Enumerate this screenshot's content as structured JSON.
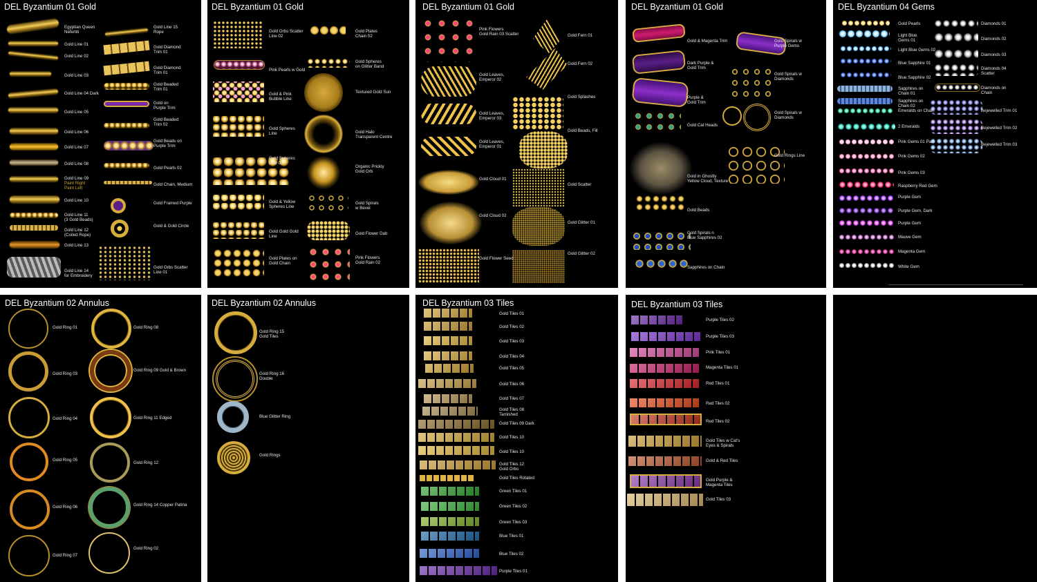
{
  "panels": {
    "p1": {
      "title": "DEL Byzantium 01 Gold",
      "labels": [
        "Egyptian Queen\nNefertiti",
        "Gold Line 15\nRope",
        "Gold Line 01",
        "Gold Diamond\nTrim 01",
        "Gold Line 02",
        "Gold Diamond\nTrim 01",
        "Gold Line 03",
        "Gold Beaded\nTrim 01",
        "Gold Line 04 Dark",
        "Gold on\nPurple Trim",
        "Gold Line 05",
        "Gold Beaded\nTrim 02",
        "Gold Line 06",
        "Gold Beads on\nPurple Trim",
        "Gold Line 07",
        "Gold Line 08",
        "Gold Pearls 02",
        "Gold Line 09",
        "Gold Chain, Medium",
        "Gold Line 10",
        "Gold Framed Purple",
        "Gold Line 11\n(3 Gold Beads)",
        "Gold Line 12\n(Coiled Rope)",
        "Gold & Gold Circle",
        "Gold Line 13",
        "Gold Line 14\nfor Embroidery",
        "Gold Orbs Scatter\nLine 01"
      ],
      "sub": "Paint Right\nPaint Left"
    },
    "p2": {
      "title": "DEL Byzantium 01 Gold",
      "labels": [
        "Gold Orbs Scatter\nLine 02",
        "Gold Plates\nChain 02",
        "Pink Pearls w Gold",
        "Gold Spheres\non Glitter Band",
        "Gold & Pink\nBubble Line",
        "Textured Gold Sun",
        "Gold Spheres\nLine",
        "Gold Halo\nTransparent Centre",
        "Gold Spheres\nLine 03",
        "Organic Prickly\nGold Orb",
        "Gold & Yellow\nSpheres Line",
        "Gold Spirals\nw Bevel",
        "Gold Gold Gold\nLine",
        "Gold Flower Dab",
        "Gold Plates on\nGold Chain",
        "Pink Flowers\nGold Rain 02"
      ]
    },
    "p3": {
      "title": "DEL Byzantium 01 Gold",
      "labels": [
        "Pink Flowers\nGold Rain 03 Scatter",
        "Gold Fern 01",
        "Gold Fern 02",
        "Gold Leaves,\nEmperor 02",
        "Gold Splashes",
        "Gold Leaves,\nEmperor 03",
        "Gold Beads, Fill",
        "Gold Leaves,\nEmperor 01",
        "Gold Cloud 01",
        "Gold Scatter",
        "Gold Cloud 02",
        "Gold Glitter 01",
        "Gold Flower Seed",
        "Gold Glitter 02"
      ]
    },
    "p4": {
      "title": "DEL Byzantium 01 Gold",
      "labels": [
        "Gold & Magenta Trim",
        "Gold Spirals w\nPurple Gems",
        "Dark Purple &\nGold Trim",
        "Gold Spirals w\nDiamonds",
        "Purple &\nGold Trim",
        "Gold Spirals w\nDiamonds",
        "Gold Cat Heads",
        "Gold Rings Line",
        "Gold in Ghostly\nYellow Cloud, Texture",
        "Gold Beads",
        "Gold Spirals n\nBlue Sapphires 02",
        "Sapphires on Chain"
      ]
    },
    "p5": {
      "title": "DEL Byzantium 04 Gems",
      "labels": [
        "Gold Pearls",
        "Diamonds 01",
        "Light Blue\nGems 01",
        "Diamonds 02",
        "Light Blue Gems 02",
        "Diamonds 03",
        "Blue Sapphire 01",
        "Diamonds 04\nScatter",
        "Blue Sapphire 02",
        "Sapphires on\nChain 01",
        "Diamonds on\nChain",
        "Sapphires on\nChain 02",
        "Emeralds on Chain",
        "Bejewelled Trim 01",
        "2 Emeralds",
        "Bejewelled Trim 02",
        "Pink Gems 01 Pale",
        "Bejewelled Trim 03",
        "Pink Gems 02",
        "Pink Gems 03",
        "Raspberry Red Gem",
        "Purple Gem",
        "Purple Gem, Dark",
        "Purple Gem",
        "Mauve Gem",
        "Magenta Gem",
        "White Gem"
      ]
    },
    "p6": {
      "title": "DEL Byzantium 02 Annulus",
      "labels": [
        "Gold Ring 01",
        "Gold Ring 08",
        "Gold Ring 03",
        "Gold Ring 09 Gold & Brown",
        "Gold Ring 04",
        "Gold Ring 11 Edged",
        "Gold Ring 05",
        "Gold Ring 12",
        "Gold Ring 06",
        "Gold Ring 14 Copper Patina",
        "Gold Ring 07",
        "Gold Ring 02"
      ]
    },
    "p7": {
      "title": "DEL Byzantium 02 Annulus",
      "labels": [
        "Gold Ring 15\nGold Tiles",
        "Gold Ring 16\nDouble",
        "Blue Glitter Ring",
        "Gold Rings"
      ]
    },
    "p8": {
      "title": "DEL Byzantium 03 Tiles",
      "labels": [
        "Gold Tiles 01",
        "Gold Tiles 02",
        "Gold Tiles 03",
        "Gold Tiles 04",
        "Gold Tiles 05",
        "Gold Tiles 06",
        "Gold Tiles 07",
        "Gold Tiles 08\nTarnished",
        "Gold Tiles 09 Dark",
        "Gold Tiles 10",
        "Gold Tiles 10",
        "Gold Tiles 12\nGold Orbs",
        "Gold Tiles Rotated",
        "Green Tiles 01",
        "Green Tiles 02",
        "Green Tiles 03",
        "Blue Tiles 01",
        "Blue Tiles 02",
        "Purple Tiles 01"
      ]
    },
    "p9": {
      "title": "DEL Byzantium 03 Tiles",
      "labels": [
        "Purple Tiles 02",
        "Purple Tiles 03",
        "Pink Tiles 01",
        "Magenta Tiles 01",
        "Red Tiles 01",
        "Red Tiles 02",
        "Red Tiles 02",
        "Gold Tiles w Cat's\nEyes & Spirals",
        "Gold & Red Tiles",
        "Gold Purple &\nMagenta Tiles",
        "Gold Tiles 03"
      ]
    }
  },
  "colors": {
    "gold": "#e0b53f",
    "panel": "#000000",
    "divider": "#ffffff"
  }
}
